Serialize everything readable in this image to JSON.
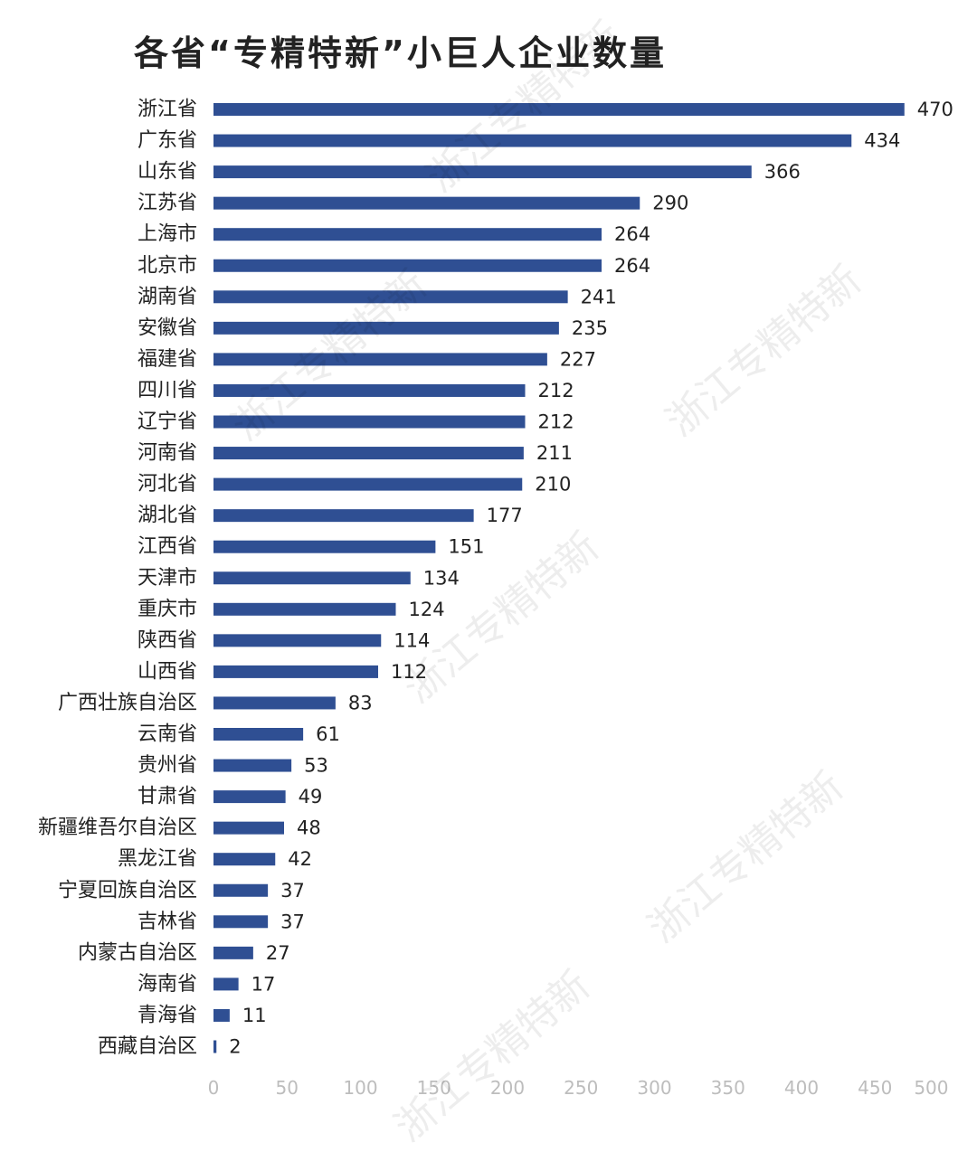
{
  "chart_data": {
    "type": "bar",
    "orientation": "horizontal",
    "title": "各省“专精特新”小巨人企业数量",
    "categories": [
      "浙江省",
      "广东省",
      "山东省",
      "江苏省",
      "上海市",
      "北京市",
      "湖南省",
      "安徽省",
      "福建省",
      "四川省",
      "辽宁省",
      "河南省",
      "河北省",
      "湖北省",
      "江西省",
      "天津市",
      "重庆市",
      "陕西省",
      "山西省",
      "广西壮族自治区",
      "云南省",
      "贵州省",
      "甘肃省",
      "新疆维吾尔自治区",
      "黑龙江省",
      "宁夏回族自治区",
      "吉林省",
      "内蒙古自治区",
      "海南省",
      "青海省",
      "西藏自治区"
    ],
    "values": [
      470,
      434,
      366,
      290,
      264,
      264,
      241,
      235,
      227,
      212,
      212,
      211,
      210,
      177,
      151,
      134,
      124,
      114,
      112,
      83,
      61,
      53,
      49,
      48,
      42,
      37,
      37,
      27,
      17,
      11,
      2
    ],
    "xlim": [
      0,
      500
    ],
    "xticks": [
      0,
      50,
      100,
      150,
      200,
      250,
      300,
      350,
      400,
      450,
      500
    ],
    "bar_color": "#2f4f93",
    "grid": false,
    "legend": "none"
  },
  "watermark": {
    "text": "浙江专精特新"
  }
}
